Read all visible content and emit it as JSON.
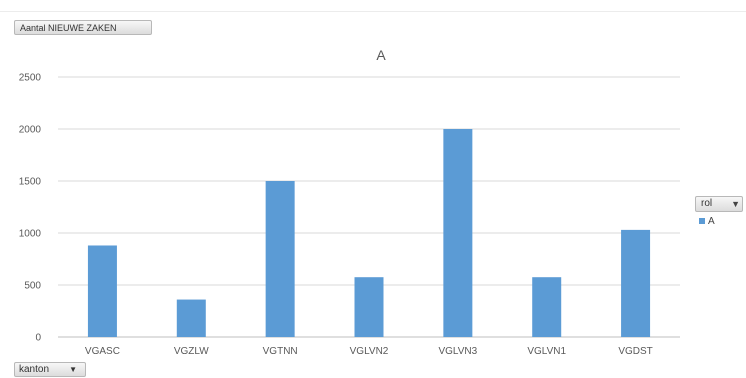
{
  "field_button": {
    "label": "Aantal NIEUWE ZAKEN"
  },
  "axis_field_button": {
    "label": "kanton",
    "icon": "dropdown-arrow-icon"
  },
  "legend": {
    "header": "rol",
    "filter_icon": "filter-icon",
    "entries": [
      "A"
    ]
  },
  "colors": {
    "bar": "#5b9bd5",
    "grid": "#d9d9d9",
    "text": "#595959"
  },
  "chart_data": {
    "type": "bar",
    "title": "A",
    "categories": [
      "VGASC",
      "VGZLW",
      "VGTNN",
      "VGLVN2",
      "VGLVN3",
      "VGLVN1",
      "VGDST"
    ],
    "series": [
      {
        "name": "A",
        "values": [
          880,
          360,
          1500,
          575,
          2000,
          575,
          1030
        ]
      }
    ],
    "yticks": [
      0,
      500,
      1000,
      1500,
      2000,
      2500
    ],
    "ylim": [
      0,
      2500
    ],
    "grid": true,
    "legend_position": "right"
  }
}
